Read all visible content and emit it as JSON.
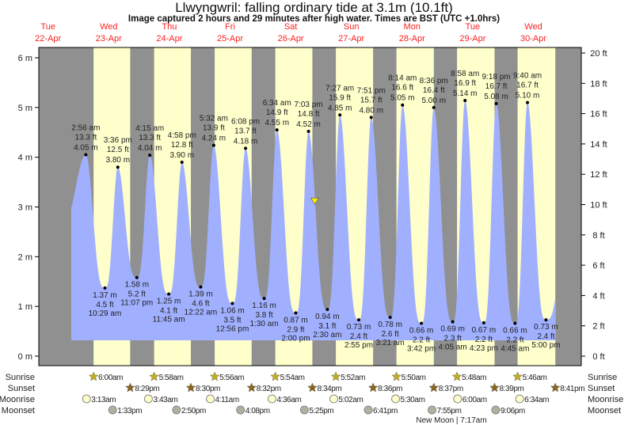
{
  "title": "Llwyngwril: falling  ordinary tide at 3.1m (10.1ft)",
  "subtitle": "Image captured 2 hours and 29 minutes after high water. Times are BST (UTC +1.0hrs)",
  "colors": {
    "night": "#909090",
    "day": "#ffffcc",
    "water": "#a0b0ff",
    "day_label": "#ff2020",
    "sunrise": "#c0b020",
    "sunset": "#8b6420",
    "moonrise": "#ffffcc",
    "moonset": "#b0b0a0"
  },
  "chart_data": {
    "type": "area",
    "title": "Llwyngwril: falling  ordinary tide at 3.1m (10.1ft)",
    "ylabel_left": "m",
    "ylabel_right": "ft",
    "ylim": [
      0,
      6
    ],
    "yticks_left": [
      "0 m",
      "1 m",
      "2 m",
      "3 m",
      "4 m",
      "5 m",
      "6 m"
    ],
    "yticks_right": [
      "0 ft",
      "2 ft",
      "4 ft",
      "6 ft",
      "8 ft",
      "10 ft",
      "12 ft",
      "14 ft",
      "16 ft",
      "18 ft",
      "20 ft"
    ],
    "days": [
      {
        "dow": "Tue",
        "date": "22-Apr"
      },
      {
        "dow": "Wed",
        "date": "23-Apr"
      },
      {
        "dow": "Thu",
        "date": "24-Apr"
      },
      {
        "dow": "Fri",
        "date": "25-Apr"
      },
      {
        "dow": "Sat",
        "date": "26-Apr"
      },
      {
        "dow": "Sun",
        "date": "27-Apr"
      },
      {
        "dow": "Mon",
        "date": "28-Apr"
      },
      {
        "dow": "Tue",
        "date": "29-Apr"
      },
      {
        "dow": "Wed",
        "date": "30-Apr"
      }
    ],
    "current": {
      "day": 4,
      "time": "21:32",
      "m": 3.1,
      "ft": 10.1,
      "state": "falling"
    },
    "extremes": [
      {
        "type": "high",
        "day": 1,
        "time": "2:56 am",
        "h": "2:56",
        "ft": "13.3 ft",
        "m": "4.05 m",
        "v": 4.05
      },
      {
        "type": "low",
        "day": 1,
        "time": "10:29 am",
        "h": "10:29",
        "ft": "4.5 ft",
        "m": "1.37 m",
        "v": 1.37
      },
      {
        "type": "high",
        "day": 1,
        "time": "3:36 pm",
        "h": "15:36",
        "ft": "12.5 ft",
        "m": "3.80 m",
        "v": 3.8
      },
      {
        "type": "low",
        "day": 1,
        "time": "11:07 pm",
        "h": "23:07",
        "ft": "5.2 ft",
        "m": "1.58 m",
        "v": 1.58
      },
      {
        "type": "high",
        "day": 2,
        "time": "4:15 am",
        "h": "4:15",
        "ft": "13.3 ft",
        "m": "4.04 m",
        "v": 4.04
      },
      {
        "type": "low",
        "day": 2,
        "time": "11:45 am",
        "h": "11:45",
        "ft": "4.1 ft",
        "m": "1.25 m",
        "v": 1.25
      },
      {
        "type": "high",
        "day": 2,
        "time": "4:58 pm",
        "h": "16:58",
        "ft": "12.8 ft",
        "m": "3.90 m",
        "v": 3.9
      },
      {
        "type": "low",
        "day": 3,
        "time": "12:22 am",
        "h": "0:22",
        "ft": "4.6 ft",
        "m": "1.39 m",
        "v": 1.39
      },
      {
        "type": "high",
        "day": 3,
        "time": "5:32 am",
        "h": "5:32",
        "ft": "13.9 ft",
        "m": "4.24 m",
        "v": 4.24
      },
      {
        "type": "low",
        "day": 3,
        "time": "12:56 pm",
        "h": "12:56",
        "ft": "3.5 ft",
        "m": "1.06 m",
        "v": 1.06
      },
      {
        "type": "high",
        "day": 3,
        "time": "6:08 pm",
        "h": "18:08",
        "ft": "13.7 ft",
        "m": "4.18 m",
        "v": 4.18
      },
      {
        "type": "low",
        "day": 4,
        "time": "1:30 am",
        "h": "1:30",
        "ft": "3.8 ft",
        "m": "1.16 m",
        "v": 1.16
      },
      {
        "type": "high",
        "day": 4,
        "time": "6:34 am",
        "h": "6:34",
        "ft": "14.9 ft",
        "m": "4.55 m",
        "v": 4.55
      },
      {
        "type": "low",
        "day": 4,
        "time": "2:00 pm",
        "h": "14:00",
        "ft": "2.9 ft",
        "m": "0.87 m",
        "v": 0.87
      },
      {
        "type": "high",
        "day": 4,
        "time": "7:03 pm",
        "h": "19:03",
        "ft": "14.8 ft",
        "m": "4.52 m",
        "v": 4.52
      },
      {
        "type": "low",
        "day": 5,
        "time": "2:30 am",
        "h": "2:30",
        "ft": "3.1 ft",
        "m": "0.94 m",
        "v": 0.94
      },
      {
        "type": "high",
        "day": 5,
        "time": "7:27 am",
        "h": "7:27",
        "ft": "15.9 ft",
        "m": "4.85 m",
        "v": 4.85
      },
      {
        "type": "low",
        "day": 5,
        "time": "2:55 pm",
        "h": "14:55",
        "ft": "2.4 ft",
        "m": "0.73 m",
        "v": 0.73
      },
      {
        "type": "high",
        "day": 5,
        "time": "7:51 pm",
        "h": "19:51",
        "ft": "15.7 ft",
        "m": "4.80 m",
        "v": 4.8
      },
      {
        "type": "low",
        "day": 6,
        "time": "3:21 am",
        "h": "3:21",
        "ft": "2.6 ft",
        "m": "0.78 m",
        "v": 0.78
      },
      {
        "type": "high",
        "day": 6,
        "time": "8:14 am",
        "h": "8:14",
        "ft": "16.6 ft",
        "m": "5.05 m",
        "v": 5.05
      },
      {
        "type": "low",
        "day": 6,
        "time": "3:42 pm",
        "h": "15:42",
        "ft": "2.2 ft",
        "m": "0.66 m",
        "v": 0.66
      },
      {
        "type": "high",
        "day": 6,
        "time": "8:36 pm",
        "h": "20:36",
        "ft": "16.4 ft",
        "m": "5.00 m",
        "v": 5.0
      },
      {
        "type": "low",
        "day": 7,
        "time": "4:05 am",
        "h": "4:05",
        "ft": "2.3 ft",
        "m": "0.69 m",
        "v": 0.69
      },
      {
        "type": "high",
        "day": 7,
        "time": "8:58 am",
        "h": "8:58",
        "ft": "16.9 ft",
        "m": "5.14 m",
        "v": 5.14
      },
      {
        "type": "low",
        "day": 7,
        "time": "4:23 pm",
        "h": "16:23",
        "ft": "2.2 ft",
        "m": "0.67 m",
        "v": 0.67
      },
      {
        "type": "high",
        "day": 7,
        "time": "9:18 pm",
        "h": "21:18",
        "ft": "16.7 ft",
        "m": "5.08 m",
        "v": 5.08
      },
      {
        "type": "low",
        "day": 8,
        "time": "4:45 am",
        "h": "4:45",
        "ft": "2.2 ft",
        "m": "0.66 m",
        "v": 0.66
      },
      {
        "type": "high",
        "day": 8,
        "time": "9:40 am",
        "h": "9:40",
        "ft": "16.7 ft",
        "m": "5.10 m",
        "v": 5.1
      },
      {
        "type": "low",
        "day": 8,
        "time": "5:00 pm",
        "h": "17:00",
        "ft": "2.4 ft",
        "m": "0.73 m",
        "v": 0.73
      }
    ]
  },
  "astro": {
    "row_labels": {
      "sunrise": "Sunrise",
      "sunset": "Sunset",
      "moonrise": "Moonrise",
      "moonset": "Moonset"
    },
    "sunrise": [
      {
        "day": 1,
        "h": "6:00",
        "label": "6:00am"
      },
      {
        "day": 2,
        "h": "5:58",
        "label": "5:58am"
      },
      {
        "day": 3,
        "h": "5:56",
        "label": "5:56am"
      },
      {
        "day": 4,
        "h": "5:54",
        "label": "5:54am"
      },
      {
        "day": 5,
        "h": "5:52",
        "label": "5:52am"
      },
      {
        "day": 6,
        "h": "5:50",
        "label": "5:50am"
      },
      {
        "day": 7,
        "h": "5:48",
        "label": "5:48am"
      },
      {
        "day": 8,
        "h": "5:46",
        "label": "5:46am"
      }
    ],
    "sunset": [
      {
        "day": 1,
        "h": "20:29",
        "label": "8:29pm"
      },
      {
        "day": 2,
        "h": "20:30",
        "label": "8:30pm"
      },
      {
        "day": 3,
        "h": "20:32",
        "label": "8:32pm"
      },
      {
        "day": 4,
        "h": "20:34",
        "label": "8:34pm"
      },
      {
        "day": 5,
        "h": "20:36",
        "label": "8:36pm"
      },
      {
        "day": 6,
        "h": "20:37",
        "label": "8:37pm"
      },
      {
        "day": 7,
        "h": "20:39",
        "label": "8:39pm"
      },
      {
        "day": 8,
        "h": "20:41",
        "label": "8:41pm"
      }
    ],
    "moonrise": [
      {
        "day": 1,
        "h": "3:13",
        "label": "3:13am"
      },
      {
        "day": 2,
        "h": "3:43",
        "label": "3:43am"
      },
      {
        "day": 3,
        "h": "4:11",
        "label": "4:11am"
      },
      {
        "day": 4,
        "h": "4:36",
        "label": "4:36am"
      },
      {
        "day": 5,
        "h": "5:02",
        "label": "5:02am"
      },
      {
        "day": 6,
        "h": "5:30",
        "label": "5:30am"
      },
      {
        "day": 7,
        "h": "6:00",
        "label": "6:00am"
      },
      {
        "day": 8,
        "h": "6:34",
        "label": "6:34am"
      }
    ],
    "moonset": [
      {
        "day": 1,
        "h": "13:33",
        "label": "1:33pm"
      },
      {
        "day": 2,
        "h": "14:50",
        "label": "2:50pm"
      },
      {
        "day": 3,
        "h": "16:08",
        "label": "4:08pm"
      },
      {
        "day": 4,
        "h": "17:25",
        "label": "5:25pm"
      },
      {
        "day": 5,
        "h": "18:41",
        "label": "6:41pm"
      },
      {
        "day": 6,
        "h": "19:55",
        "label": "7:55pm"
      },
      {
        "day": 7,
        "h": "21:06",
        "label": "9:06pm"
      }
    ],
    "moon_phase": "New Moon | 7:17am"
  }
}
